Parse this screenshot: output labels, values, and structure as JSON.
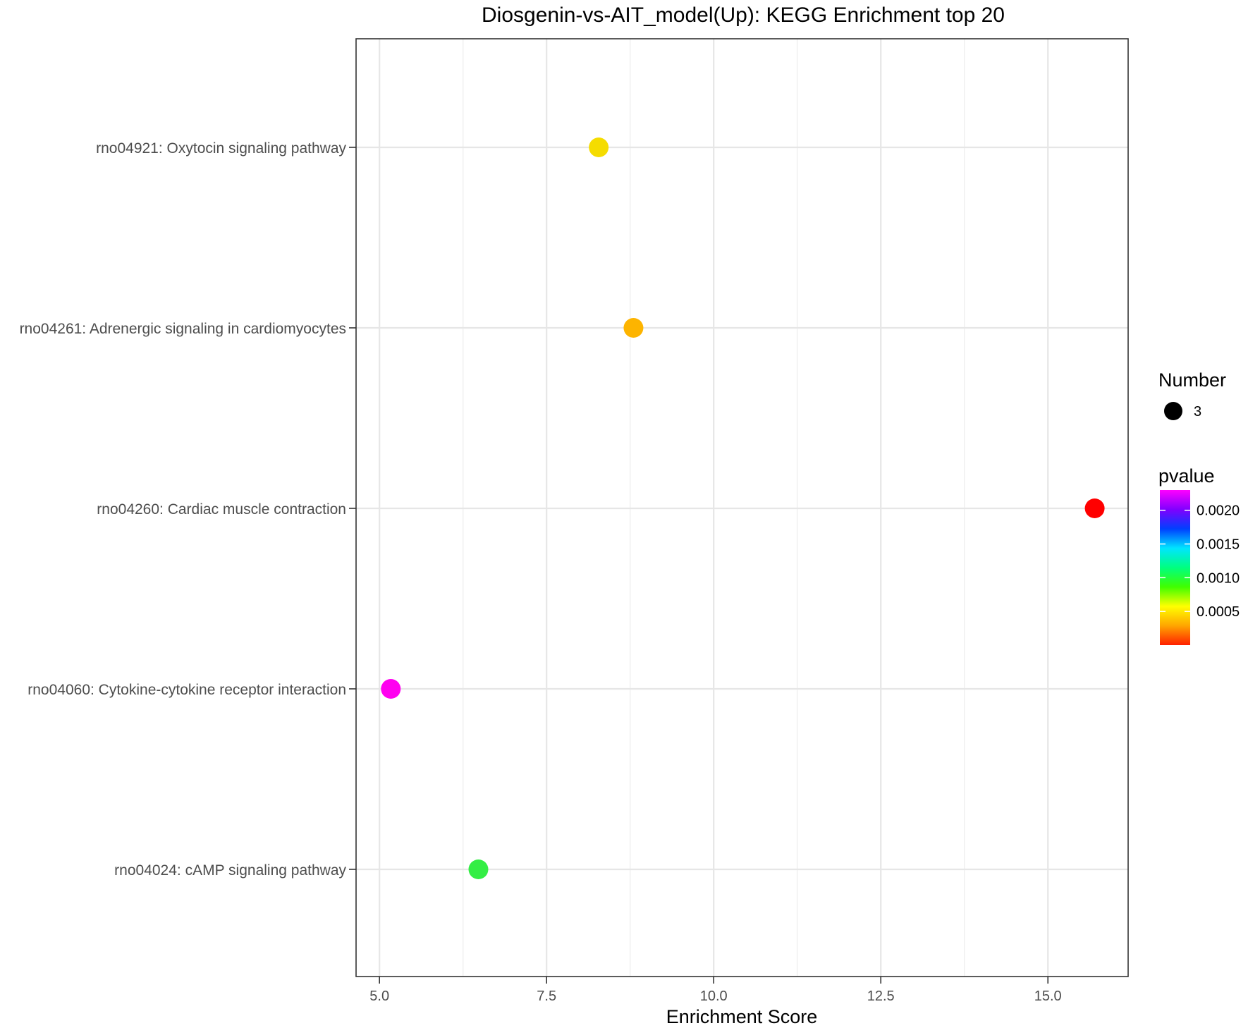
{
  "chart_data": {
    "type": "scatter",
    "title": "Diosgenin-vs-AIT_model(Up): KEGG Enrichment top 20",
    "xlabel": "Enrichment Score",
    "ylabel": "",
    "xlim": [
      4.65,
      16.2
    ],
    "xticks": [
      {
        "value": 5.0,
        "label": "5.0"
      },
      {
        "value": 7.5,
        "label": "7.5"
      },
      {
        "value": 10.0,
        "label": "10.0"
      },
      {
        "value": 12.5,
        "label": "12.5"
      },
      {
        "value": 15.0,
        "label": "15.0"
      }
    ],
    "x_minor_gridlines": [
      6.25,
      8.75,
      11.25,
      13.75
    ],
    "grid": true,
    "categories": [
      "rno04921: Oxytocin signaling pathway",
      "rno04261: Adrenergic signaling in cardiomyocytes",
      "rno04260: Cardiac muscle contraction",
      "rno04060: Cytokine-cytokine receptor interaction",
      "rno04024: cAMP signaling pathway"
    ],
    "points": [
      {
        "category": "rno04921: Oxytocin signaling pathway",
        "x": 8.28,
        "number": 3,
        "pvalue": 0.00045,
        "color": "#f5dc00"
      },
      {
        "category": "rno04261: Adrenergic signaling in cardiomyocytes",
        "x": 8.8,
        "number": 3,
        "pvalue": 0.00035,
        "color": "#fdb400"
      },
      {
        "category": "rno04260: Cardiac muscle contraction",
        "x": 15.7,
        "number": 3,
        "pvalue": 3e-05,
        "color": "#ff0000"
      },
      {
        "category": "rno04060: Cytokine-cytokine receptor interaction",
        "x": 5.17,
        "number": 3,
        "pvalue": 0.00225,
        "color": "#ff00f0"
      },
      {
        "category": "rno04024: cAMP signaling pathway",
        "x": 6.48,
        "number": 3,
        "pvalue": 0.0009,
        "color": "#33ee44"
      }
    ],
    "legend_position": "right",
    "legend_size": {
      "title": "Number",
      "entries": [
        {
          "label": "3",
          "color": "#000000"
        }
      ]
    },
    "legend_color": {
      "title": "pvalue",
      "range": [
        0.0,
        0.0023
      ],
      "ticks": [
        {
          "value": 0.002,
          "label": "0.0020"
        },
        {
          "value": 0.0015,
          "label": "0.0015"
        },
        {
          "value": 0.001,
          "label": "0.0010"
        },
        {
          "value": 0.0005,
          "label": "0.0005"
        }
      ],
      "gradient": [
        "#ff00ff",
        "#8000ff",
        "#0040ff",
        "#00e5ff",
        "#00ff80",
        "#40ff00",
        "#ffff00",
        "#ffa500",
        "#ff2000"
      ]
    }
  }
}
